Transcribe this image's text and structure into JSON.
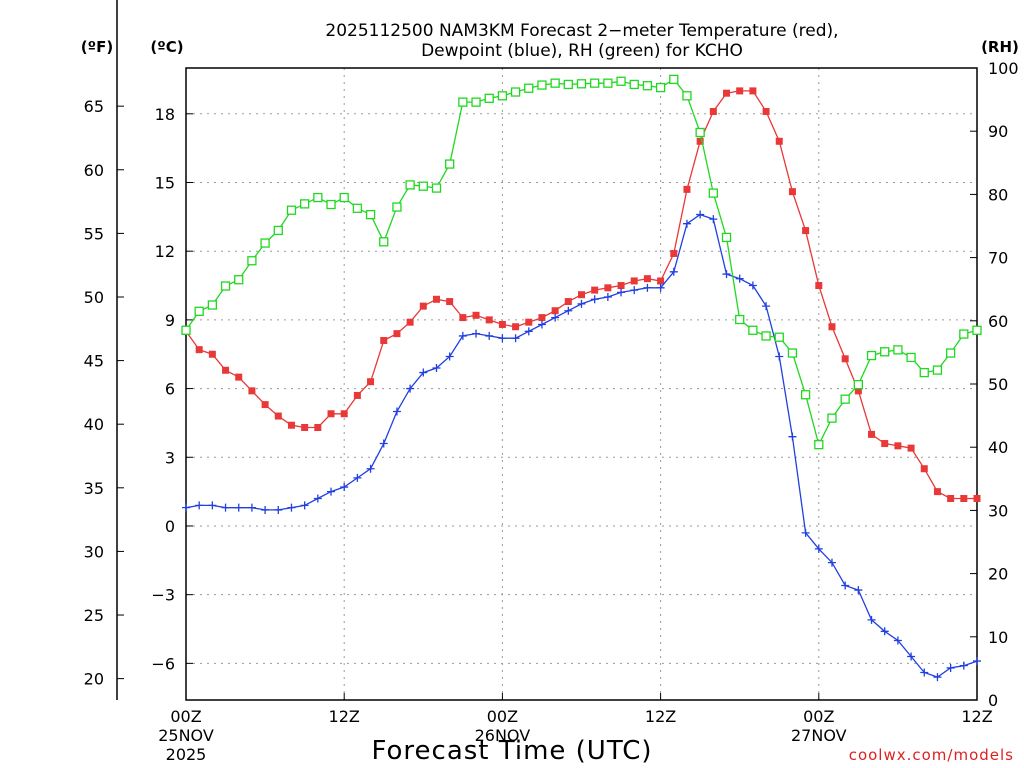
{
  "chart_data": {
    "type": "line",
    "title_line1": "2025112500 NAM3KM Forecast 2−meter Temperature (red),",
    "title_line2": "Dewpoint (blue), RH (green) for KCHO",
    "xlabel": "Forecast Time (UTC)",
    "credit": "coolwx.com/models",
    "left_unit_f": "(ºF)",
    "left_unit_c": "(ºC)",
    "right_unit": "(RH)",
    "x_range_hours": [
      0,
      60
    ],
    "c_axis": {
      "min": -7.6,
      "max": 20.0,
      "ticks": [
        "−6",
        "−3",
        "0",
        "3",
        "6",
        "9",
        "12",
        "15",
        "18"
      ],
      "tick_values": [
        -6,
        -3,
        0,
        3,
        6,
        9,
        12,
        15,
        18
      ]
    },
    "f_axis": {
      "ticks": [
        "20",
        "25",
        "30",
        "35",
        "40",
        "45",
        "50",
        "55",
        "60",
        "65"
      ],
      "tick_values": [
        20,
        25,
        30,
        35,
        40,
        45,
        50,
        55,
        60,
        65
      ]
    },
    "rh_axis": {
      "min": 0,
      "max": 100,
      "ticks": [
        "0",
        "10",
        "20",
        "30",
        "40",
        "50",
        "60",
        "70",
        "80",
        "90",
        "100"
      ],
      "tick_values": [
        0,
        10,
        20,
        30,
        40,
        50,
        60,
        70,
        80,
        90,
        100
      ]
    },
    "x_ticks": [
      {
        "hour": 0,
        "label": "00Z",
        "sub1": "25NOV",
        "sub2": "2025"
      },
      {
        "hour": 12,
        "label": "12Z",
        "sub1": "",
        "sub2": ""
      },
      {
        "hour": 24,
        "label": "00Z",
        "sub1": "26NOV",
        "sub2": ""
      },
      {
        "hour": 36,
        "label": "12Z",
        "sub1": "",
        "sub2": ""
      },
      {
        "hour": 48,
        "label": "00Z",
        "sub1": "27NOV",
        "sub2": ""
      },
      {
        "hour": 60,
        "label": "12Z",
        "sub1": "",
        "sub2": ""
      }
    ],
    "grid": true,
    "series": [
      {
        "name": "Temperature",
        "units": "C",
        "axis": "c",
        "color": "#e83838",
        "marker": "filled-square",
        "points": [
          [
            0,
            8.5
          ],
          [
            1,
            7.7
          ],
          [
            2,
            7.5
          ],
          [
            3,
            6.8
          ],
          [
            4,
            6.5
          ],
          [
            5,
            5.9
          ],
          [
            6,
            5.3
          ],
          [
            7,
            4.8
          ],
          [
            8,
            4.4
          ],
          [
            9,
            4.3
          ],
          [
            10,
            4.3
          ],
          [
            11,
            4.9
          ],
          [
            12,
            4.9
          ],
          [
            13,
            5.7
          ],
          [
            14,
            6.3
          ],
          [
            15,
            8.1
          ],
          [
            16,
            8.4
          ],
          [
            17,
            8.9
          ],
          [
            18,
            9.6
          ],
          [
            19,
            9.9
          ],
          [
            20,
            9.8
          ],
          [
            21,
            9.1
          ],
          [
            22,
            9.2
          ],
          [
            23,
            9.0
          ],
          [
            24,
            8.8
          ],
          [
            25,
            8.7
          ],
          [
            26,
            8.9
          ],
          [
            27,
            9.1
          ],
          [
            28,
            9.4
          ],
          [
            29,
            9.8
          ],
          [
            30,
            10.1
          ],
          [
            31,
            10.3
          ],
          [
            32,
            10.4
          ],
          [
            33,
            10.5
          ],
          [
            34,
            10.7
          ],
          [
            35,
            10.8
          ],
          [
            36,
            10.7
          ],
          [
            37,
            11.9
          ],
          [
            38,
            14.7
          ],
          [
            39,
            16.8
          ],
          [
            40,
            18.1
          ],
          [
            41,
            18.9
          ],
          [
            42,
            19.0
          ],
          [
            43,
            19.0
          ],
          [
            44,
            18.1
          ],
          [
            45,
            16.8
          ],
          [
            46,
            14.6
          ],
          [
            47,
            12.9
          ],
          [
            48,
            10.5
          ],
          [
            49,
            8.7
          ],
          [
            50,
            7.3
          ],
          [
            51,
            5.9
          ],
          [
            52,
            4.0
          ],
          [
            53,
            3.6
          ],
          [
            54,
            3.5
          ],
          [
            55,
            3.4
          ],
          [
            56,
            2.5
          ],
          [
            57,
            1.5
          ],
          [
            58,
            1.2
          ],
          [
            59,
            1.2
          ],
          [
            60,
            1.2
          ]
        ]
      },
      {
        "name": "Dewpoint",
        "units": "C",
        "axis": "c",
        "color": "#2040e0",
        "marker": "plus",
        "points": [
          [
            0,
            0.8
          ],
          [
            1,
            0.9
          ],
          [
            2,
            0.9
          ],
          [
            3,
            0.8
          ],
          [
            4,
            0.8
          ],
          [
            5,
            0.8
          ],
          [
            6,
            0.7
          ],
          [
            7,
            0.7
          ],
          [
            8,
            0.8
          ],
          [
            9,
            0.9
          ],
          [
            10,
            1.2
          ],
          [
            11,
            1.5
          ],
          [
            12,
            1.7
          ],
          [
            13,
            2.1
          ],
          [
            14,
            2.5
          ],
          [
            15,
            3.6
          ],
          [
            16,
            5.0
          ],
          [
            17,
            6.0
          ],
          [
            18,
            6.7
          ],
          [
            19,
            6.9
          ],
          [
            20,
            7.4
          ],
          [
            21,
            8.3
          ],
          [
            22,
            8.4
          ],
          [
            23,
            8.3
          ],
          [
            24,
            8.2
          ],
          [
            25,
            8.2
          ],
          [
            26,
            8.5
          ],
          [
            27,
            8.8
          ],
          [
            28,
            9.1
          ],
          [
            29,
            9.4
          ],
          [
            30,
            9.7
          ],
          [
            31,
            9.9
          ],
          [
            32,
            10.0
          ],
          [
            33,
            10.2
          ],
          [
            34,
            10.3
          ],
          [
            35,
            10.4
          ],
          [
            36,
            10.4
          ],
          [
            37,
            11.1
          ],
          [
            38,
            13.2
          ],
          [
            39,
            13.6
          ],
          [
            40,
            13.4
          ],
          [
            41,
            11.0
          ],
          [
            42,
            10.8
          ],
          [
            43,
            10.5
          ],
          [
            44,
            9.6
          ],
          [
            45,
            7.4
          ],
          [
            46,
            3.9
          ],
          [
            47,
            -0.3
          ],
          [
            48,
            -1.0
          ],
          [
            49,
            -1.6
          ],
          [
            50,
            -2.6
          ],
          [
            51,
            -2.8
          ],
          [
            52,
            -4.1
          ],
          [
            53,
            -4.6
          ],
          [
            54,
            -5.0
          ],
          [
            55,
            -5.7
          ],
          [
            56,
            -6.4
          ],
          [
            57,
            -6.6
          ],
          [
            58,
            -6.2
          ],
          [
            59,
            -6.1
          ],
          [
            60,
            -5.9
          ]
        ]
      },
      {
        "name": "RH",
        "units": "%",
        "axis": "rh",
        "color": "#20d820",
        "marker": "open-square",
        "points": [
          [
            0,
            58.5
          ],
          [
            1,
            61.5
          ],
          [
            2,
            62.5
          ],
          [
            3,
            65.5
          ],
          [
            4,
            66.5
          ],
          [
            5,
            69.5
          ],
          [
            6,
            72.3
          ],
          [
            7,
            74.3
          ],
          [
            8,
            77.5
          ],
          [
            9,
            78.5
          ],
          [
            10,
            79.5
          ],
          [
            11,
            78.4
          ],
          [
            12,
            79.5
          ],
          [
            13,
            77.8
          ],
          [
            14,
            76.8
          ],
          [
            15,
            72.5
          ],
          [
            16,
            78.0
          ],
          [
            17,
            81.5
          ],
          [
            18,
            81.3
          ],
          [
            19,
            81.0
          ],
          [
            20,
            84.8
          ],
          [
            21,
            94.6
          ],
          [
            22,
            94.6
          ],
          [
            23,
            95.2
          ],
          [
            24,
            95.6
          ],
          [
            25,
            96.2
          ],
          [
            26,
            96.8
          ],
          [
            27,
            97.3
          ],
          [
            28,
            97.6
          ],
          [
            29,
            97.4
          ],
          [
            30,
            97.5
          ],
          [
            31,
            97.6
          ],
          [
            32,
            97.6
          ],
          [
            33,
            97.9
          ],
          [
            34,
            97.4
          ],
          [
            35,
            97.2
          ],
          [
            36,
            96.9
          ],
          [
            37,
            98.2
          ],
          [
            38,
            95.6
          ],
          [
            39,
            89.8
          ],
          [
            40,
            80.2
          ],
          [
            41,
            73.2
          ],
          [
            42,
            60.2
          ],
          [
            43,
            58.5
          ],
          [
            44,
            57.6
          ],
          [
            45,
            57.4
          ],
          [
            46,
            54.9
          ],
          [
            47,
            48.3
          ],
          [
            48,
            40.4
          ],
          [
            49,
            44.6
          ],
          [
            50,
            47.6
          ],
          [
            51,
            49.9
          ],
          [
            52,
            54.5
          ],
          [
            53,
            55.1
          ],
          [
            54,
            55.4
          ],
          [
            55,
            54.2
          ],
          [
            56,
            51.8
          ],
          [
            57,
            52.2
          ],
          [
            58,
            54.9
          ],
          [
            59,
            57.9
          ],
          [
            60,
            58.5
          ]
        ]
      }
    ]
  }
}
